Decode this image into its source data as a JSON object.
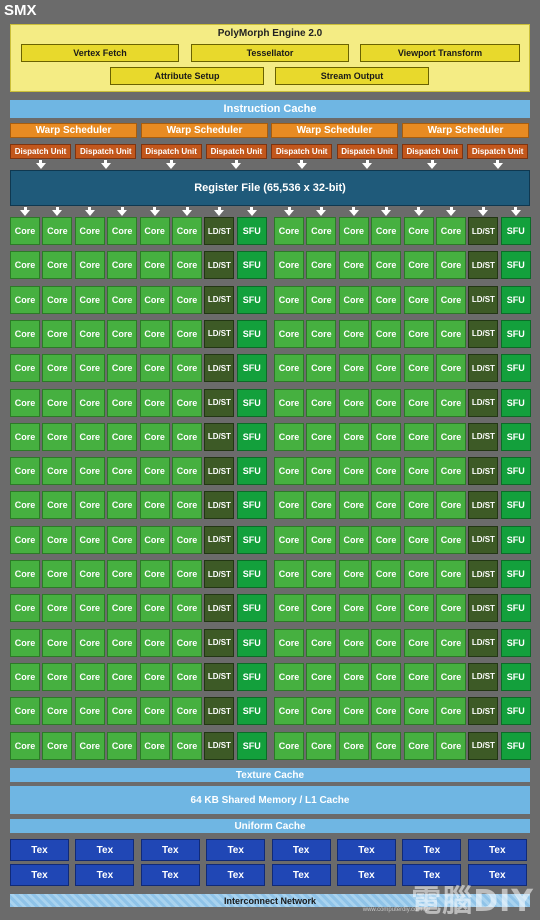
{
  "smx_label": "SMX",
  "polymorph": {
    "title": "PolyMorph Engine 2.0",
    "units": [
      "Vertex Fetch",
      "Tessellator",
      "Viewport Transform",
      "Attribute Setup",
      "Stream Output"
    ]
  },
  "instruction_cache": "Instruction Cache",
  "warp_scheduler_label": "Warp Scheduler",
  "warp_scheduler_count": 4,
  "dispatch_unit_label": "Dispatch Unit",
  "dispatch_unit_count": 8,
  "register_file": "Register File (65,536 x 32-bit)",
  "execution_grid": {
    "rows": 16,
    "core_label": "Core",
    "ldst_label": "LD/ST",
    "sfu_label": "SFU",
    "half_pattern": [
      "core",
      "core",
      "core",
      "core",
      "core",
      "core",
      "ldst",
      "sfu"
    ]
  },
  "texture_cache": "Texture Cache",
  "shared_memory": "64 KB Shared Memory / L1 Cache",
  "uniform_cache": "Uniform Cache",
  "tex_label": "Tex",
  "tex_rows": 2,
  "tex_per_row": 8,
  "interconnect": "Interconnect Network",
  "watermark": {
    "text": "電腦DIY",
    "url": "www.computerdiy.com.tw"
  },
  "colors": {
    "frame": "#6b6b6b",
    "polymorph_bg": "#f4ec84",
    "polymorph_unit": "#e8d92c",
    "cache_blue": "#6fb6e3",
    "warp_orange": "#e88b22",
    "dispatch_rust": "#c2571c",
    "register_navy": "#1f5a7a",
    "core_green": "#46b040",
    "ldst_olive": "#3d5a26",
    "sfu_green": "#13a03c",
    "tex_blue": "#2047b5"
  }
}
